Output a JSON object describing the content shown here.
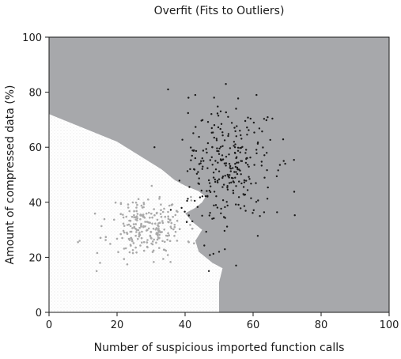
{
  "chart_data": {
    "type": "scatter",
    "title": "Overfit (Fits to Outliers)",
    "xlabel": "Number of suspicious imported function calls",
    "ylabel": "Amount of compressed data (%)",
    "xlim": [
      0,
      100
    ],
    "ylim": [
      0,
      100
    ],
    "xticks": [
      0,
      20,
      40,
      60,
      80,
      100
    ],
    "yticks": [
      0,
      20,
      40,
      60,
      80,
      100
    ],
    "grid": false,
    "legend": "none",
    "background_regions": [
      {
        "name": "region-dark",
        "color": "#a7a8ab",
        "polygon": [
          [
            0,
            72
          ],
          [
            20,
            62
          ],
          [
            33,
            52
          ],
          [
            37,
            48
          ],
          [
            40,
            46
          ],
          [
            44,
            44
          ],
          [
            46,
            42
          ],
          [
            45,
            40
          ],
          [
            43,
            38
          ],
          [
            40,
            36
          ],
          [
            42,
            33
          ],
          [
            45,
            30
          ],
          [
            43,
            26
          ],
          [
            44,
            22
          ],
          [
            46,
            20
          ],
          [
            48,
            18
          ],
          [
            51,
            16
          ],
          [
            50,
            11
          ],
          [
            50,
            0
          ],
          [
            100,
            0
          ],
          [
            100,
            100
          ],
          [
            0,
            100
          ]
        ]
      },
      {
        "name": "region-light",
        "color": "#ffffff",
        "polygon": [
          [
            0,
            0
          ],
          [
            50,
            0
          ],
          [
            50,
            11
          ],
          [
            51,
            16
          ],
          [
            48,
            18
          ],
          [
            46,
            20
          ],
          [
            44,
            22
          ],
          [
            43,
            26
          ],
          [
            45,
            30
          ],
          [
            42,
            33
          ],
          [
            40,
            36
          ],
          [
            43,
            38
          ],
          [
            45,
            40
          ],
          [
            46,
            42
          ],
          [
            44,
            44
          ],
          [
            40,
            46
          ],
          [
            37,
            48
          ],
          [
            33,
            52
          ],
          [
            20,
            62
          ],
          [
            0,
            72
          ]
        ]
      }
    ],
    "series": [
      {
        "color": "#a9a9a9",
        "cluster": {
          "center": [
            29,
            31
          ],
          "spread": [
            5.5,
            5.5
          ],
          "count": 240,
          "seed": 11
        },
        "outliers": [
          [
            8.5,
            25.5
          ],
          [
            9,
            26
          ],
          [
            14,
            15
          ],
          [
            15,
            18
          ]
        ]
      },
      {
        "color": "#1a1a1a",
        "cluster": {
          "center": [
            52,
            52
          ],
          "spread": [
            6.5,
            11
          ],
          "count": 280,
          "seed": 7
        },
        "outliers": [
          [
            35,
            81
          ],
          [
            41,
            78
          ],
          [
            43,
            79
          ],
          [
            61,
            79
          ],
          [
            69,
            55
          ],
          [
            52,
            83
          ],
          [
            31,
            60
          ],
          [
            48,
            60
          ],
          [
            55,
            74
          ],
          [
            48,
            34
          ],
          [
            50,
            22
          ],
          [
            47,
            15
          ],
          [
            62,
            35
          ],
          [
            55,
            17
          ],
          [
            43,
            56
          ]
        ]
      }
    ]
  }
}
